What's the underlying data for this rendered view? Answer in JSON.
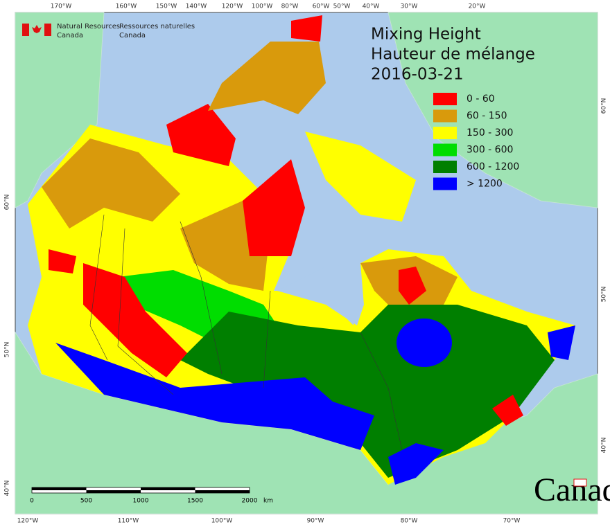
{
  "header": {
    "en": [
      "Natural Resources",
      "Canada"
    ],
    "fr": [
      "Ressources naturelles",
      "Canada"
    ]
  },
  "title": [
    "Mixing Height",
    "Hauteur de mélange",
    "2016-03-21"
  ],
  "legend": [
    {
      "label": "0 - 60",
      "color": "#ff0000"
    },
    {
      "label": "60 - 150",
      "color": "#d99a0c"
    },
    {
      "label": "150 - 300",
      "color": "#ffff00"
    },
    {
      "label": "300 - 600",
      "color": "#00dd00"
    },
    {
      "label": "600 - 1200",
      "color": "#007f00"
    },
    {
      "label": "> 1200",
      "color": "#0000ff"
    }
  ],
  "top_labels": [
    "170°W",
    "160°W",
    "150°W",
    "140°W",
    "120°W",
    "100°W",
    "80°W",
    "60°W",
    "50°W",
    "40°W",
    "30°W",
    "20°W"
  ],
  "bottom_labels": [
    "120°W",
    "110°W",
    "100°W",
    "90°W",
    "80°W",
    "70°W"
  ],
  "left_labels": [
    "60°N",
    "50°N",
    "40°N"
  ],
  "right_labels": [
    "60°N",
    "50°N",
    "40°N"
  ],
  "scale": {
    "ticks": [
      0,
      500,
      1000,
      1500,
      2000
    ],
    "unit": "km"
  },
  "wordmark": "Canada"
}
